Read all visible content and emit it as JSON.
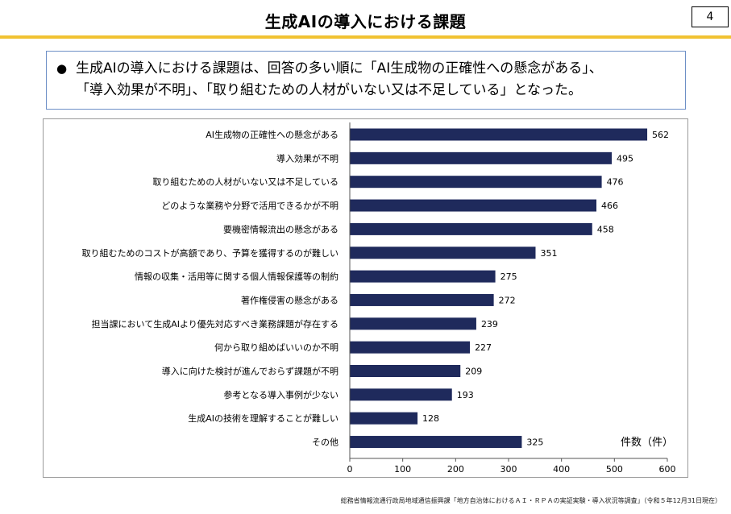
{
  "page": {
    "title": "生成AIの導入における課題",
    "number": "4"
  },
  "summary": {
    "bullet": "●",
    "line1": "生成AIの導入における課題は、回答の多い順に「AI生成物の正確性への懸念がある」、",
    "line2": "「導入効果が不明」、「取り組むための人材がいない又は不足している」となった。"
  },
  "chart_data": {
    "type": "bar",
    "orientation": "horizontal",
    "categories": [
      "AI生成物の正確性への懸念がある",
      "導入効果が不明",
      "取り組むための人材がいない又は不足している",
      "どのような業務や分野で活用できるかが不明",
      "要機密情報流出の懸念がある",
      "取り組むためのコストが高額であり、予算を獲得するのが難しい",
      "情報の収集・活用等に関する個人情報保護等の制約",
      "著作権侵害の懸念がある",
      "担当課において生成AIより優先対応すべき業務課題が存在する",
      "何から取り組めばいいのか不明",
      "導入に向けた検討が進んでおらず課題が不明",
      "参考となる導入事例が少ない",
      "生成AIの技術を理解することが難しい",
      "その他"
    ],
    "values": [
      562,
      495,
      476,
      466,
      458,
      351,
      275,
      272,
      239,
      227,
      209,
      193,
      128,
      325
    ],
    "xlim": [
      0,
      600
    ],
    "xticks": [
      0,
      100,
      200,
      300,
      400,
      500,
      600
    ],
    "xlabel": "件数（件）",
    "bar_color": "#1f2a5c"
  },
  "footnote": "総務省情報流通行政局地域通信振興課「地方自治体におけるＡＩ・ＲＰＡの実証実験・導入状況等調査」（令和５年12月31日現在）"
}
